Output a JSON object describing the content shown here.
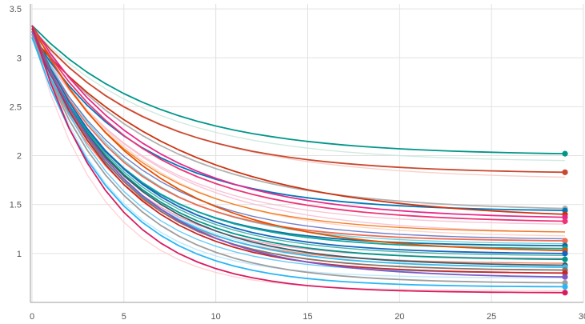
{
  "chart_data": {
    "type": "line",
    "title": "",
    "xlabel": "",
    "ylabel": "",
    "xlim": [
      0,
      30
    ],
    "ylim": [
      0.5,
      3.55
    ],
    "grid": true,
    "legend": "none",
    "x_ticks": [
      "0",
      "5",
      "10",
      "15",
      "20",
      "25",
      "30"
    ],
    "y_ticks": [
      "1",
      "1.5",
      "2",
      "2.5",
      "3",
      "3.5"
    ],
    "x": [
      0,
      1,
      2,
      3,
      4,
      5,
      6,
      7,
      8,
      9,
      10,
      11,
      12,
      13,
      14,
      15,
      16,
      17,
      18,
      19,
      20,
      21,
      22,
      23,
      24,
      25,
      26,
      27,
      28,
      29
    ],
    "series": [
      {
        "color": "#009688",
        "end": 2.02,
        "k": 0.09,
        "p": 1.65,
        "marker": true
      },
      {
        "color": "#c9482f",
        "end": 1.83,
        "k": 0.1,
        "p": 1.55,
        "marker": true
      },
      {
        "color": "#b0b0b0",
        "end": 1.46,
        "k": 0.09,
        "p": 1.6,
        "marker": true
      },
      {
        "color": "#0077bb",
        "end": 1.44,
        "k": 0.1,
        "p": 1.7,
        "marker": true
      },
      {
        "color": "#cc3311",
        "end": 1.4,
        "k": 0.08,
        "p": 1.5,
        "marker": true
      },
      {
        "color": "#e7298a",
        "end": 1.37,
        "k": 0.1,
        "p": 1.55,
        "marker": true
      },
      {
        "color": "#ee3377",
        "end": 1.33,
        "k": 0.11,
        "p": 1.45,
        "marker": true
      },
      {
        "color": "#f06a52",
        "end": 1.13,
        "k": 0.13,
        "p": 1.5,
        "marker": true
      },
      {
        "color": "#0a6fa0",
        "end": 1.08,
        "k": 0.13,
        "p": 1.55,
        "marker": true
      },
      {
        "color": "#0ea5a0",
        "end": 1.05,
        "k": 0.12,
        "p": 1.6,
        "marker": true
      },
      {
        "color": "#e65100",
        "end": 1.03,
        "k": 0.11,
        "p": 1.45,
        "marker": true
      },
      {
        "color": "#1565c0",
        "end": 1.0,
        "k": 0.13,
        "p": 1.5,
        "marker": true
      },
      {
        "color": "#009688",
        "end": 0.94,
        "k": 0.14,
        "p": 1.4,
        "marker": true
      },
      {
        "color": "#455a64",
        "end": 0.88,
        "k": 0.13,
        "p": 1.45,
        "marker": true
      },
      {
        "color": "#33bbee",
        "end": 0.86,
        "k": 0.14,
        "p": 1.4,
        "marker": true
      },
      {
        "color": "#8d6e63",
        "end": 0.83,
        "k": 0.15,
        "p": 1.35,
        "marker": true
      },
      {
        "color": "#c62828",
        "end": 0.8,
        "k": 0.15,
        "p": 1.35,
        "marker": true
      },
      {
        "color": "#7e57c2",
        "end": 0.76,
        "k": 0.14,
        "p": 1.3,
        "marker": true
      },
      {
        "color": "#9e9e9e",
        "end": 0.7,
        "k": 0.16,
        "p": 1.3,
        "marker": true
      },
      {
        "color": "#29b6f6",
        "end": 0.66,
        "k": 0.18,
        "p": 1.25,
        "marker": true
      },
      {
        "color": "#d81b60",
        "end": 0.6,
        "k": 0.2,
        "p": 1.2,
        "marker": true
      },
      {
        "color": "#c8e6dc",
        "end": 1.95,
        "k": 0.1,
        "p": 1.5,
        "marker": false
      },
      {
        "color": "#f8c8c0",
        "end": 1.78,
        "k": 0.1,
        "p": 1.4,
        "marker": false
      },
      {
        "color": "#f8bbd0",
        "end": 1.3,
        "k": 0.12,
        "p": 1.4,
        "marker": false
      },
      {
        "color": "#f8bbd0",
        "end": 1.22,
        "k": 0.12,
        "p": 1.3,
        "marker": false
      },
      {
        "color": "#ffccbc",
        "end": 1.18,
        "k": 0.13,
        "p": 1.3,
        "marker": false
      },
      {
        "color": "#b3e5fc",
        "end": 0.75,
        "k": 0.22,
        "p": 1.1,
        "marker": false
      },
      {
        "color": "#b3e5fc",
        "end": 0.9,
        "k": 0.17,
        "p": 1.2,
        "marker": false
      },
      {
        "color": "#ffcdd2",
        "end": 0.62,
        "k": 0.24,
        "p": 1.1,
        "marker": false
      },
      {
        "color": "#f48fb1",
        "end": 0.95,
        "k": 0.16,
        "p": 1.3,
        "marker": false
      },
      {
        "color": "#ef6c00",
        "end": 1.22,
        "k": 0.12,
        "p": 1.5,
        "marker": false
      },
      {
        "color": "#4dd0e1",
        "end": 1.1,
        "k": 0.13,
        "p": 1.45,
        "marker": false
      },
      {
        "color": "#26a69a",
        "end": 0.98,
        "k": 0.14,
        "p": 1.4,
        "marker": false
      },
      {
        "color": "#5c6bc0",
        "end": 1.15,
        "k": 0.12,
        "p": 1.5,
        "marker": false
      },
      {
        "color": "#ff7043",
        "end": 0.9,
        "k": 0.15,
        "p": 1.4,
        "marker": false
      },
      {
        "color": "#4fc3f7",
        "end": 0.8,
        "k": 0.17,
        "p": 1.3,
        "marker": false
      }
    ]
  }
}
